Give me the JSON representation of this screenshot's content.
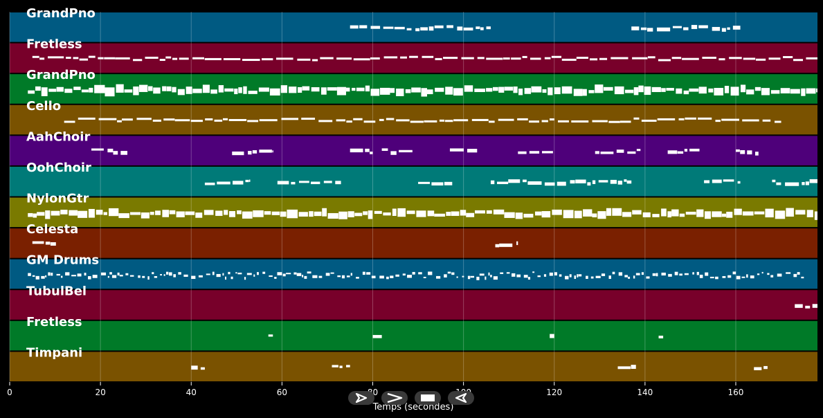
{
  "chart_data": {
    "type": "piano-roll",
    "xlabel": "Temps (secondes)",
    "xlim": [
      0,
      178
    ],
    "xticks": [
      0,
      20,
      40,
      60,
      80,
      100,
      120,
      140,
      160
    ],
    "grid": true,
    "background": "#000000",
    "tracks": [
      {
        "name": "GrandPno",
        "color": "#005a82",
        "segments": [
          [
            75,
            106
          ],
          [
            137,
            161
          ]
        ],
        "density": "sparse"
      },
      {
        "name": "Fretless",
        "color": "#78002a",
        "segments": [
          [
            5,
            178
          ]
        ],
        "density": "continuous"
      },
      {
        "name": "GrandPno",
        "color": "#007a28",
        "segments": [
          [
            4,
            178
          ]
        ],
        "density": "dense"
      },
      {
        "name": "Cello",
        "color": "#7a5200",
        "segments": [
          [
            12,
            170
          ]
        ],
        "density": "continuous"
      },
      {
        "name": "AahChoir",
        "color": "#4e007a",
        "segments": [
          [
            18,
            26
          ],
          [
            49,
            58
          ],
          [
            75,
            80
          ],
          [
            82,
            89
          ],
          [
            97,
            103
          ],
          [
            112,
            120
          ],
          [
            129,
            139
          ],
          [
            145,
            152
          ],
          [
            160,
            165
          ]
        ],
        "density": "sparse"
      },
      {
        "name": "OohChoir",
        "color": "#007a78",
        "segments": [
          [
            43,
            53
          ],
          [
            59,
            73
          ],
          [
            90,
            98
          ],
          [
            106,
            137
          ],
          [
            153,
            161
          ],
          [
            168,
            178
          ]
        ],
        "density": "sparse"
      },
      {
        "name": "NylonGtr",
        "color": "#7a7a00",
        "segments": [
          [
            4,
            178
          ]
        ],
        "density": "dense"
      },
      {
        "name": "Celesta",
        "color": "#7a2000",
        "segments": [
          [
            5,
            11
          ],
          [
            107,
            112
          ]
        ],
        "density": "sparse"
      },
      {
        "name": "GM Drums",
        "color": "#005a82",
        "segments": [
          [
            4,
            175
          ]
        ],
        "density": "percussive"
      },
      {
        "name": "TubulBel",
        "color": "#78002a",
        "segments": [
          [
            173,
            178
          ]
        ],
        "density": "sparse"
      },
      {
        "name": "Fretless",
        "color": "#007a28",
        "segments": [
          [
            57,
            58
          ],
          [
            80,
            82
          ],
          [
            119,
            120
          ],
          [
            143,
            144
          ]
        ],
        "density": "sparse"
      },
      {
        "name": "Timpani",
        "color": "#7a5200",
        "segments": [
          [
            40,
            43
          ],
          [
            71,
            75
          ],
          [
            134,
            138
          ],
          [
            164,
            167
          ]
        ],
        "density": "sparse"
      }
    ]
  },
  "controls": {
    "play_icon": "play-icon",
    "fast_forward_icon": "fast-forward-icon",
    "stop_icon": "stop-icon",
    "rewind_icon": "rewind-icon"
  }
}
